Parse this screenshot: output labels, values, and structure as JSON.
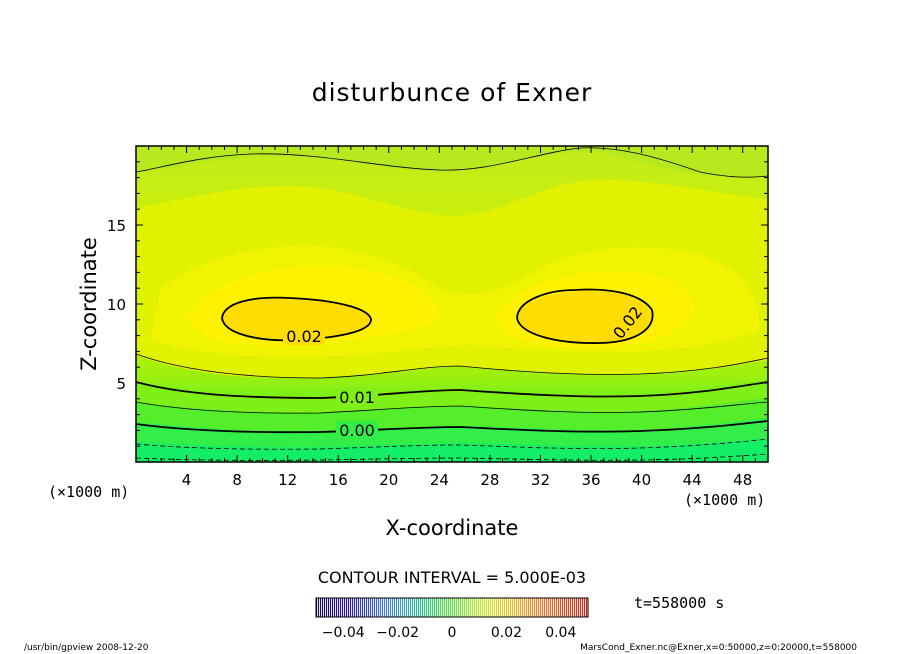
{
  "chart_data": {
    "type": "heatmap",
    "title": "disturbunce of Exner",
    "xlabel": "X-coordinate",
    "ylabel": "Z-coordinate",
    "x_unit": "(×1000 m)",
    "y_unit": "(×1000 m)",
    "xlim": [
      0,
      50
    ],
    "ylim": [
      0,
      20
    ],
    "x_ticks": [
      4,
      8,
      12,
      16,
      20,
      24,
      28,
      32,
      36,
      40,
      44,
      48
    ],
    "y_ticks": [
      5,
      10,
      15
    ],
    "contour_labels": [
      {
        "text": "0.02",
        "x": 12.5,
        "z": 8.0
      },
      {
        "text": "0.02",
        "x": 38.5,
        "z": 8.5
      },
      {
        "text": "0.01",
        "x": 17.0,
        "z": 4.1
      },
      {
        "text": "0.00",
        "x": 17.0,
        "z": 2.1
      }
    ],
    "contour_interval": "CONTOUR INTERVAL = 5.000E-03",
    "colorbar": {
      "ticks": [
        "−0.04",
        "−0.02",
        "0",
        "0.02",
        "0.04"
      ],
      "range": [
        -0.05,
        0.05
      ]
    },
    "time_label": "t=558000 s"
  },
  "footer": {
    "left": "/usr/bin/gpview   2008-12-20",
    "right": "MarsCond_Exner.nc@Exner,x=0:50000,z=0:20000,t=558000"
  }
}
